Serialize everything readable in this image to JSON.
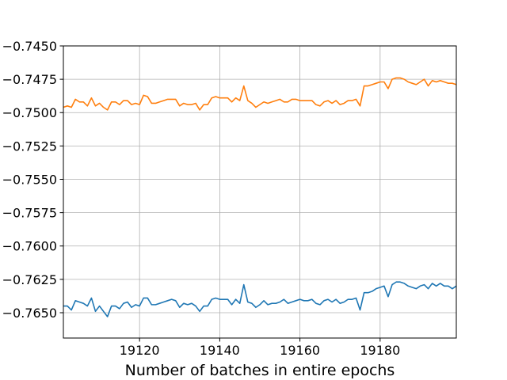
{
  "chart_data": {
    "type": "line",
    "title": "",
    "xlabel": "Number of batches in entire epochs",
    "ylabel": "",
    "xlim": [
      19101,
      19199
    ],
    "ylim": [
      -0.7669,
      -0.745
    ],
    "grid": true,
    "x_ticks": [
      19120,
      19140,
      19160,
      19180
    ],
    "x_tick_labels": [
      "19120",
      "19140",
      "19160",
      "19180"
    ],
    "y_ticks": [
      -0.745,
      -0.7475,
      -0.75,
      -0.7525,
      -0.755,
      -0.7575,
      -0.76,
      -0.7625,
      -0.765
    ],
    "y_tick_labels": [
      "−0.7450",
      "−0.7475",
      "−0.7500",
      "−0.7525",
      "−0.7550",
      "−0.7575",
      "−0.7600",
      "−0.7625",
      "−0.7650"
    ],
    "x": [
      19101,
      19102,
      19103,
      19104,
      19105,
      19106,
      19107,
      19108,
      19109,
      19110,
      19111,
      19112,
      19113,
      19114,
      19115,
      19116,
      19117,
      19118,
      19119,
      19120,
      19121,
      19122,
      19123,
      19124,
      19125,
      19126,
      19127,
      19128,
      19129,
      19130,
      19131,
      19132,
      19133,
      19134,
      19135,
      19136,
      19137,
      19138,
      19139,
      19140,
      19141,
      19142,
      19143,
      19144,
      19145,
      19146,
      19147,
      19148,
      19149,
      19150,
      19151,
      19152,
      19153,
      19154,
      19155,
      19156,
      19157,
      19158,
      19159,
      19160,
      19161,
      19162,
      19163,
      19164,
      19165,
      19166,
      19167,
      19168,
      19169,
      19170,
      19171,
      19172,
      19173,
      19174,
      19175,
      19176,
      19177,
      19178,
      19179,
      19180,
      19181,
      19182,
      19183,
      19184,
      19185,
      19186,
      19187,
      19188,
      19189,
      19190,
      19191,
      19192,
      19193,
      19194,
      19195,
      19196,
      19197,
      19198,
      19199
    ],
    "series": [
      {
        "color": "#ff7f0e",
        "values": [
          -0.7496,
          -0.7495,
          -0.7496,
          -0.749,
          -0.7492,
          -0.7492,
          -0.7495,
          -0.7489,
          -0.7495,
          -0.7493,
          -0.7496,
          -0.7498,
          -0.7492,
          -0.7492,
          -0.7494,
          -0.7491,
          -0.7491,
          -0.7494,
          -0.7493,
          -0.7494,
          -0.7487,
          -0.7488,
          -0.7493,
          -0.7493,
          -0.7492,
          -0.7491,
          -0.749,
          -0.749,
          -0.749,
          -0.7495,
          -0.7493,
          -0.7494,
          -0.7494,
          -0.7493,
          -0.7498,
          -0.7494,
          -0.7494,
          -0.7489,
          -0.7488,
          -0.7489,
          -0.7489,
          -0.7489,
          -0.7492,
          -0.7489,
          -0.7491,
          -0.748,
          -0.7491,
          -0.7493,
          -0.7496,
          -0.7494,
          -0.7492,
          -0.7493,
          -0.7492,
          -0.7491,
          -0.749,
          -0.7492,
          -0.7492,
          -0.749,
          -0.749,
          -0.7491,
          -0.7491,
          -0.7491,
          -0.7491,
          -0.7494,
          -0.7495,
          -0.7492,
          -0.7491,
          -0.7493,
          -0.7491,
          -0.7494,
          -0.7493,
          -0.7491,
          -0.7491,
          -0.749,
          -0.7495,
          -0.748,
          -0.748,
          -0.7479,
          -0.7478,
          -0.7477,
          -0.7477,
          -0.7482,
          -0.7475,
          -0.7474,
          -0.7474,
          -0.7475,
          -0.7477,
          -0.7478,
          -0.7479,
          -0.7477,
          -0.7475,
          -0.748,
          -0.7476,
          -0.7477,
          -0.7476,
          -0.7477,
          -0.7478,
          -0.7478,
          -0.7479
        ]
      },
      {
        "color": "#1f77b4",
        "values": [
          -0.7645,
          -0.7645,
          -0.7648,
          -0.7641,
          -0.7642,
          -0.7643,
          -0.7645,
          -0.7639,
          -0.7649,
          -0.7645,
          -0.7649,
          -0.7653,
          -0.7645,
          -0.7645,
          -0.7647,
          -0.7643,
          -0.7642,
          -0.7646,
          -0.7644,
          -0.7645,
          -0.7639,
          -0.7639,
          -0.7644,
          -0.7644,
          -0.7643,
          -0.7642,
          -0.7641,
          -0.764,
          -0.7641,
          -0.7646,
          -0.7643,
          -0.7644,
          -0.7643,
          -0.7645,
          -0.7649,
          -0.7645,
          -0.7645,
          -0.764,
          -0.7639,
          -0.764,
          -0.764,
          -0.764,
          -0.7644,
          -0.764,
          -0.7643,
          -0.7629,
          -0.7642,
          -0.7643,
          -0.7646,
          -0.7644,
          -0.7641,
          -0.7644,
          -0.7643,
          -0.7643,
          -0.7642,
          -0.764,
          -0.7643,
          -0.7642,
          -0.7641,
          -0.764,
          -0.7641,
          -0.7641,
          -0.764,
          -0.7643,
          -0.7644,
          -0.7641,
          -0.764,
          -0.7642,
          -0.764,
          -0.7643,
          -0.7642,
          -0.764,
          -0.764,
          -0.7639,
          -0.7648,
          -0.7635,
          -0.7635,
          -0.7634,
          -0.7632,
          -0.7631,
          -0.763,
          -0.7638,
          -0.7629,
          -0.7627,
          -0.7627,
          -0.7628,
          -0.763,
          -0.7631,
          -0.7632,
          -0.763,
          -0.7629,
          -0.7632,
          -0.7628,
          -0.763,
          -0.7628,
          -0.763,
          -0.763,
          -0.7632,
          -0.763
        ]
      }
    ]
  }
}
